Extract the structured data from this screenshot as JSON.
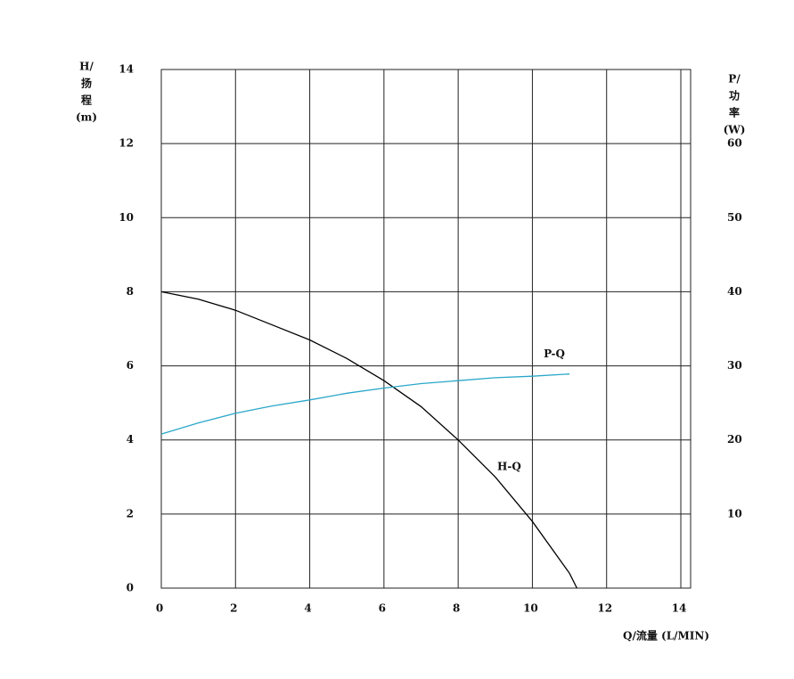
{
  "chart_data": {
    "type": "line",
    "ylabel": [
      "H/",
      "扬",
      "程",
      "(m)"
    ],
    "y2label": [
      "P/",
      "功",
      "率",
      "(W)"
    ],
    "xlabel": "Q/流量 (L/MIN)",
    "xlim": [
      0,
      14
    ],
    "xticks": [
      0,
      2,
      4,
      6,
      8,
      10,
      12,
      14
    ],
    "ylim": [
      0,
      14
    ],
    "yticks": [
      0,
      2,
      4,
      6,
      8,
      10,
      12,
      14
    ],
    "y2lim": [
      0,
      70
    ],
    "y2ticks": [
      10,
      20,
      30,
      40,
      50,
      60
    ],
    "grid": true,
    "series": [
      {
        "name": "H-Q",
        "color": "#000000",
        "x": [
          0,
          1,
          2,
          3,
          4,
          5,
          6,
          7,
          8,
          9,
          10,
          11,
          11.2
        ],
        "values": [
          8,
          7.8,
          7.5,
          7.1,
          6.7,
          6.2,
          5.6,
          4.9,
          4.0,
          3.0,
          1.8,
          0.4,
          0
        ]
      },
      {
        "name": "P-Q",
        "color": "#2aa7c9",
        "axis": "y2",
        "x": [
          0,
          1,
          2,
          3,
          4,
          5,
          6,
          7,
          8,
          9,
          10,
          11
        ],
        "values": [
          20.8,
          22.3,
          23.6,
          24.6,
          25.4,
          26.3,
          27.0,
          27.6,
          28.0,
          28.4,
          28.6,
          28.9
        ]
      }
    ]
  }
}
